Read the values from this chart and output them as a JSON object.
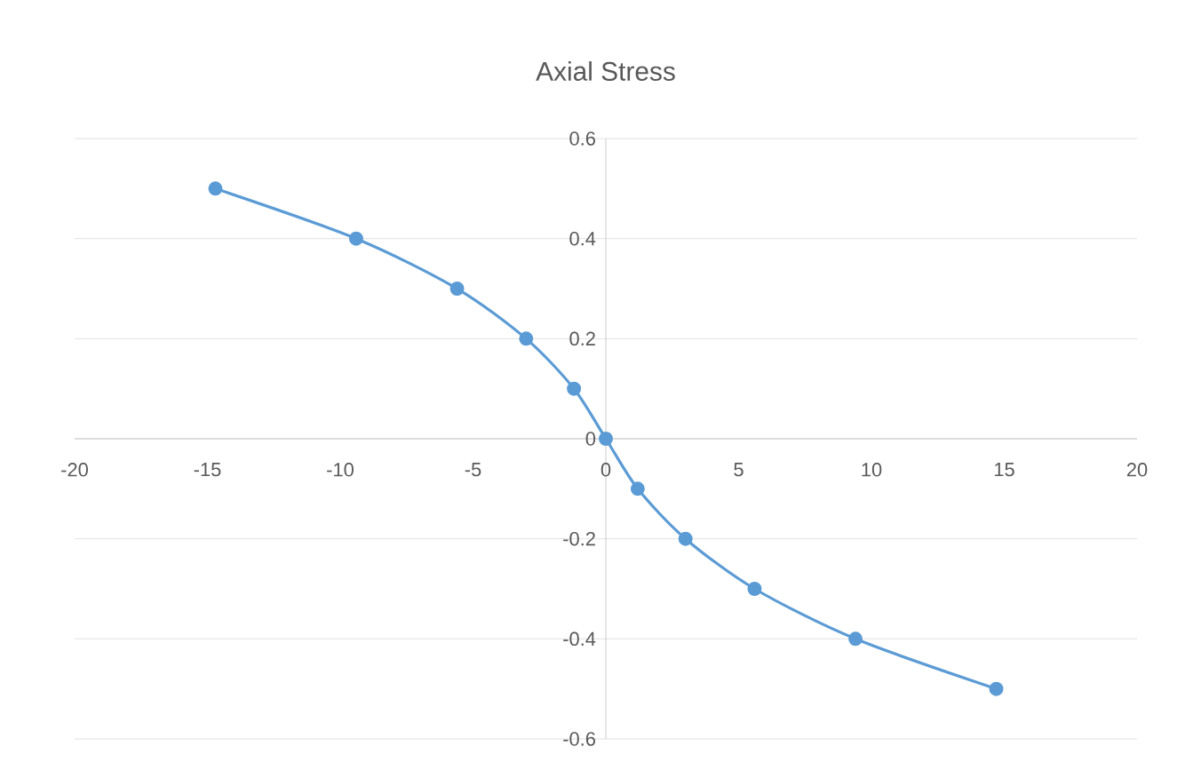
{
  "chart_data": {
    "type": "line",
    "title": "Axial Stress",
    "x": [
      -14.7,
      -9.4,
      -5.6,
      -3.0,
      -1.2,
      0,
      1.2,
      3.0,
      5.6,
      9.4,
      14.7
    ],
    "series": [
      {
        "color": "#5b9bd5",
        "values": [
          0.5,
          0.4,
          0.3,
          0.2,
          0.1,
          0,
          -0.1,
          -0.2,
          -0.3,
          -0.4,
          -0.5
        ]
      }
    ],
    "xlim": [
      -20,
      20
    ],
    "xticks": [
      -20,
      -15,
      -10,
      -5,
      0,
      5,
      10,
      15,
      20
    ],
    "ylim": [
      -0.6,
      0.6
    ],
    "yticks": [
      -0.6,
      -0.4,
      -0.2,
      0,
      0.2,
      0.4,
      0.6
    ],
    "grid": "y",
    "marker": "circle",
    "line_style": "solid"
  }
}
